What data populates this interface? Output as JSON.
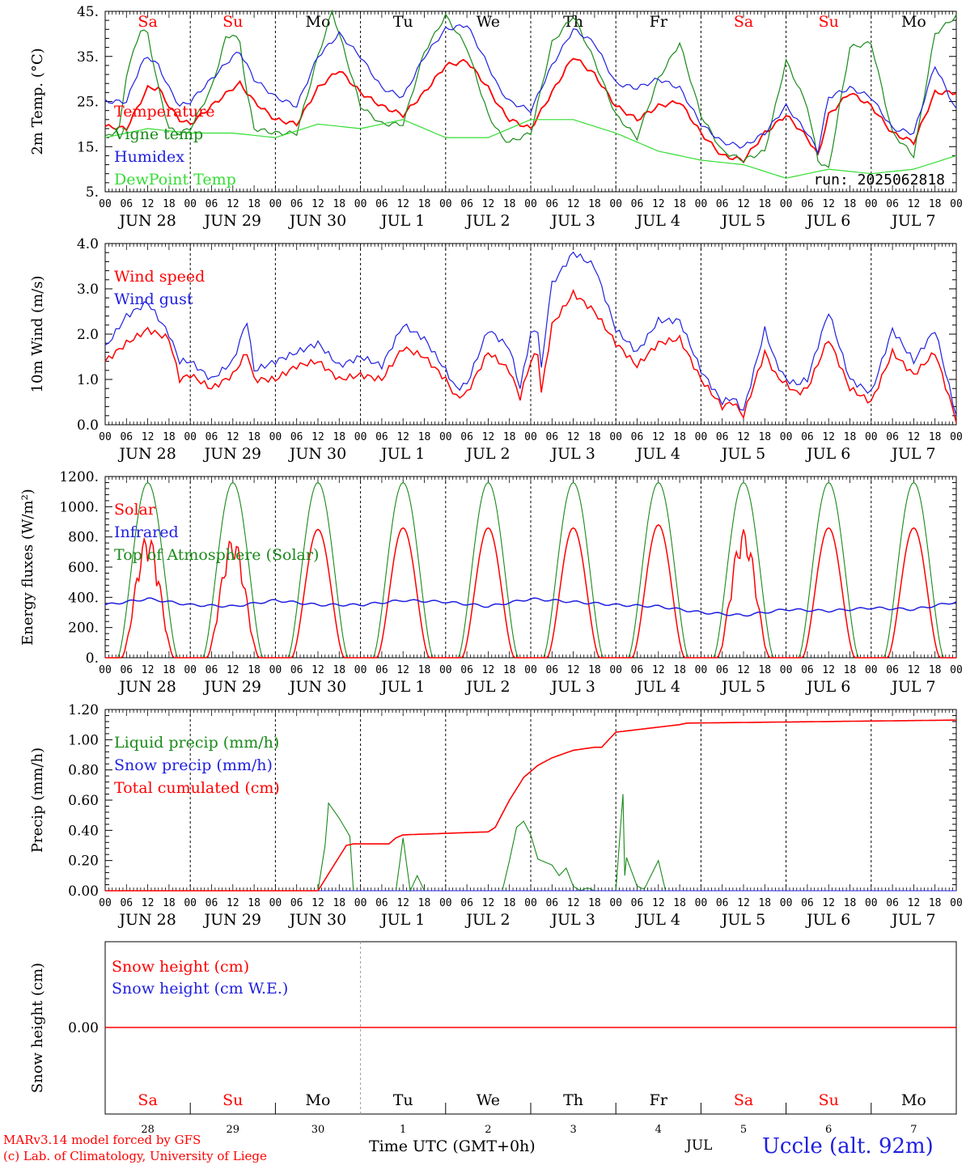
{
  "run_label": "run: 2025062818",
  "days": [
    "Sa",
    "Su",
    "Mo",
    "Tu",
    "We",
    "Th",
    "Fr",
    "Sa",
    "Su",
    "Mo"
  ],
  "day_colors": [
    "#ff0000",
    "#ff0000",
    "#000000",
    "#000000",
    "#000000",
    "#000000",
    "#000000",
    "#ff0000",
    "#ff0000",
    "#000000"
  ],
  "date_labels": [
    "JUN 28",
    "JUN 29",
    "JUN 30",
    "JUL  1",
    "JUL  2",
    "JUL  3",
    "JUL  4",
    "JUL  5",
    "JUL  6",
    "JUL  7"
  ],
  "hour_labels": [
    "00",
    "06",
    "12",
    "18"
  ],
  "bottom_day_numbers": [
    "28",
    "29",
    "30",
    "1",
    "2",
    "3",
    "4",
    "5",
    "6",
    "7"
  ],
  "footer": {
    "credit_line1": "MARv3.14 model forced by GFS",
    "credit_line2": "(c) Lab. of Climatology, University of Liege",
    "xaxis_label": "Time UTC (GMT+0h)",
    "month_label": "JUL",
    "station": "Uccle (alt. 92m)"
  },
  "chart_data": [
    {
      "type": "line",
      "ylabel": "2m Temp. (°C)",
      "ylim": [
        5,
        45
      ],
      "yticks": [
        5,
        15,
        25,
        35,
        45
      ],
      "ytick_labels": [
        "5.",
        "15.",
        "25.",
        "35.",
        "45."
      ],
      "x_unit": "hours since JUN 28 00 UTC",
      "series": [
        {
          "name": "Temperature",
          "color": "#ff0000",
          "x": [
            0,
            6,
            10,
            12,
            15,
            18,
            21,
            24,
            30,
            36,
            38,
            42,
            48,
            54,
            60,
            66,
            72,
            78,
            84,
            90,
            96,
            102,
            108,
            111,
            114,
            120,
            126,
            132,
            138,
            144,
            150,
            156,
            162,
            168,
            174,
            180,
            186,
            192,
            198,
            201,
            204,
            210,
            216,
            222,
            228,
            234,
            240
          ],
          "y": [
            19.5,
            19,
            25,
            28,
            28,
            24,
            21,
            20,
            24,
            28,
            29,
            25,
            21,
            20,
            28,
            32,
            27,
            24,
            22,
            27,
            33,
            34,
            28,
            24,
            21,
            19,
            27,
            35,
            31,
            24,
            21,
            24,
            25,
            18,
            13,
            12,
            18,
            22,
            17,
            13,
            22,
            27,
            24,
            18,
            16,
            27,
            27
          ]
        },
        {
          "name": "Vigne temp",
          "color": "#1a8a1a",
          "x": [
            0,
            4,
            6,
            10,
            12,
            15,
            18,
            21,
            24,
            30,
            34,
            36,
            38,
            40,
            42,
            48,
            54,
            60,
            64,
            66,
            72,
            78,
            84,
            90,
            96,
            102,
            108,
            112,
            114,
            120,
            126,
            132,
            138,
            144,
            150,
            156,
            162,
            168,
            174,
            180,
            186,
            192,
            198,
            201,
            204,
            210,
            216,
            222,
            228,
            234,
            240
          ],
          "y": [
            17,
            19,
            31,
            41,
            40,
            28,
            19,
            18,
            19,
            28,
            39,
            40,
            38,
            27,
            19,
            18,
            18,
            35,
            45,
            40,
            24,
            20,
            20,
            36,
            44,
            37,
            22,
            17,
            16,
            18,
            38,
            44,
            34,
            22,
            17,
            30,
            38,
            22,
            14,
            12,
            14,
            34,
            24,
            12,
            10,
            37,
            38,
            18,
            13,
            40,
            44
          ]
        },
        {
          "name": "Humidex",
          "color": "#2020e0",
          "x": [
            0,
            6,
            10,
            12,
            15,
            18,
            21,
            24,
            30,
            36,
            38,
            42,
            48,
            54,
            60,
            66,
            72,
            78,
            84,
            90,
            96,
            102,
            108,
            111,
            114,
            120,
            126,
            132,
            138,
            144,
            150,
            156,
            162,
            168,
            174,
            180,
            186,
            192,
            198,
            201,
            204,
            210,
            216,
            222,
            228,
            234,
            240
          ],
          "y": [
            25,
            25,
            33,
            35,
            33,
            28,
            24,
            25,
            30,
            35,
            36,
            30,
            26,
            24,
            35,
            40,
            35,
            28,
            26,
            35,
            41,
            42,
            33,
            28,
            25,
            23,
            33,
            41,
            38,
            29,
            28,
            30,
            28,
            20,
            16,
            15,
            18,
            24,
            18,
            14,
            26,
            28,
            26,
            19,
            18,
            33,
            23
          ]
        },
        {
          "name": "DewPoint Temp",
          "color": "#33dd33",
          "x": [
            0,
            12,
            24,
            36,
            48,
            60,
            72,
            84,
            96,
            108,
            120,
            132,
            144,
            156,
            168,
            180,
            192,
            204,
            216,
            228,
            240
          ],
          "y": [
            17,
            19,
            18,
            18,
            17,
            20,
            19,
            21,
            17,
            17,
            21,
            21,
            18,
            14,
            12,
            11,
            8,
            10,
            9,
            10,
            13
          ]
        }
      ]
    },
    {
      "type": "line",
      "ylabel": "10m Wind (m/s)",
      "ylim": [
        0,
        4
      ],
      "yticks": [
        0,
        1,
        2,
        3,
        4
      ],
      "ytick_labels": [
        "0.0",
        "1.0",
        "2.0",
        "3.0",
        "4.0"
      ],
      "series": [
        {
          "name": "Wind speed",
          "color": "#ff0000",
          "x": [
            0,
            6,
            12,
            18,
            21,
            24,
            30,
            36,
            40,
            42,
            48,
            54,
            60,
            66,
            72,
            78,
            84,
            90,
            96,
            99,
            102,
            108,
            114,
            117,
            120,
            122,
            123,
            125,
            126,
            132,
            138,
            144,
            150,
            156,
            162,
            168,
            174,
            177,
            180,
            186,
            189,
            192,
            195,
            198,
            204,
            210,
            216,
            222,
            228,
            234,
            240
          ],
          "y": [
            1.4,
            1.8,
            2.1,
            1.9,
            1.0,
            1.1,
            0.8,
            1.1,
            1.6,
            1.0,
            1.0,
            1.3,
            1.4,
            1.0,
            1.1,
            1.0,
            1.7,
            1.5,
            1.0,
            0.6,
            0.7,
            1.6,
            1.2,
            0.6,
            1.4,
            1.6,
            0.7,
            1.7,
            2.2,
            2.9,
            2.5,
            1.8,
            1.3,
            1.8,
            1.9,
            1.0,
            0.4,
            0.5,
            0.2,
            1.6,
            1.1,
            0.9,
            0.7,
            0.8,
            1.9,
            0.8,
            0.5,
            1.6,
            1.1,
            1.6,
            0.1
          ]
        },
        {
          "name": "Wind gust",
          "color": "#2020e0",
          "x": [
            0,
            6,
            12,
            18,
            21,
            24,
            30,
            36,
            40,
            42,
            48,
            54,
            60,
            66,
            72,
            78,
            84,
            90,
            96,
            99,
            102,
            108,
            114,
            117,
            120,
            122,
            123,
            125,
            126,
            132,
            138,
            144,
            150,
            156,
            162,
            168,
            174,
            177,
            180,
            186,
            189,
            192,
            195,
            198,
            204,
            210,
            216,
            222,
            228,
            234,
            240
          ],
          "y": [
            1.7,
            2.4,
            2.7,
            2.0,
            1.4,
            1.4,
            1.0,
            1.4,
            2.3,
            1.2,
            1.4,
            1.6,
            1.8,
            1.3,
            1.5,
            1.3,
            2.2,
            1.9,
            1.2,
            0.8,
            0.9,
            2.1,
            1.7,
            0.8,
            2.0,
            2.1,
            1.2,
            2.6,
            3.1,
            3.8,
            3.5,
            2.1,
            1.6,
            2.3,
            2.3,
            1.2,
            0.5,
            0.6,
            0.3,
            2.1,
            1.4,
            1.0,
            0.9,
            1.0,
            2.5,
            1.0,
            0.7,
            2.1,
            1.4,
            2.1,
            0.2
          ]
        }
      ]
    },
    {
      "type": "line",
      "ylabel": "Energy fluxes (W/m²)",
      "ylim": [
        0,
        1200
      ],
      "yticks": [
        0,
        200,
        400,
        600,
        800,
        1000,
        1200
      ],
      "ytick_labels": [
        "0.",
        "200.",
        "400.",
        "600.",
        "800.",
        "1000.",
        "1200."
      ],
      "series": [
        {
          "name": "Solar",
          "color": "#ff0000",
          "peaks": [
            820,
            800,
            850,
            860,
            860,
            860,
            880,
            850,
            860,
            860
          ],
          "note": "daily diurnal cycle, daylight ~04-20 UTC"
        },
        {
          "name": "Infrared",
          "color": "#2020e0",
          "x": [
            0,
            12,
            24,
            36,
            48,
            60,
            72,
            84,
            96,
            108,
            120,
            132,
            144,
            156,
            168,
            180,
            192,
            204,
            216,
            228,
            240
          ],
          "y": [
            350,
            390,
            350,
            340,
            380,
            350,
            350,
            380,
            370,
            340,
            390,
            370,
            350,
            340,
            300,
            280,
            320,
            310,
            330,
            320,
            370
          ]
        },
        {
          "name": "Top of Atmosphere (Solar)",
          "color": "#1a8a1a",
          "peaks": [
            1160,
            1160,
            1160,
            1160,
            1160,
            1160,
            1160,
            1160,
            1160,
            1160
          ]
        }
      ]
    },
    {
      "type": "line",
      "ylabel": "Precip (mm/h)",
      "ylim": [
        0,
        1.2
      ],
      "yticks": [
        0,
        0.2,
        0.4,
        0.6,
        0.8,
        1.0,
        1.2
      ],
      "ytick_labels": [
        "0.00",
        "0.20",
        "0.40",
        "0.60",
        "0.80",
        "1.00",
        "1.20"
      ],
      "series": [
        {
          "name": "Liquid precip (mm/h)",
          "color": "#1a8a1a",
          "x": [
            0,
            60,
            62,
            63,
            66,
            69,
            70,
            72,
            82,
            84,
            86,
            88,
            90,
            112,
            114,
            116,
            118,
            120,
            122,
            126,
            128,
            130,
            132,
            134,
            136,
            138,
            140,
            144,
            146,
            146.5,
            147,
            150,
            152,
            156,
            158,
            160,
            162,
            240
          ],
          "y": [
            0,
            0,
            0.3,
            0.58,
            0.48,
            0.36,
            0.0,
            0,
            0,
            0.35,
            0.0,
            0.1,
            0,
            0,
            0.2,
            0.42,
            0.46,
            0.37,
            0.21,
            0.17,
            0.1,
            0.15,
            0.03,
            0.0,
            0.02,
            0.0,
            0.0,
            0,
            0.64,
            0.1,
            0.22,
            0.03,
            0.01,
            0.2,
            0.0,
            0,
            0,
            0
          ]
        },
        {
          "name": "Snow precip (mm/h)",
          "color": "#2020e0",
          "x": [
            0,
            240
          ],
          "y": [
            0,
            0
          ]
        },
        {
          "name": "Total cumulated (cm)",
          "color": "#ff0000",
          "x": [
            0,
            60,
            64,
            68,
            70,
            80,
            82,
            84,
            108,
            110,
            114,
            118,
            122,
            126,
            132,
            138,
            140,
            144,
            162,
            164,
            240
          ],
          "y": [
            0,
            0,
            0.15,
            0.3,
            0.31,
            0.31,
            0.35,
            0.37,
            0.39,
            0.42,
            0.6,
            0.75,
            0.83,
            0.88,
            0.93,
            0.95,
            0.95,
            1.05,
            1.1,
            1.11,
            1.13
          ]
        }
      ]
    },
    {
      "type": "line",
      "ylabel": "Snow height (cm)",
      "ytick_labels": [
        "0.00"
      ],
      "series": [
        {
          "name": "Snow height (cm)",
          "color": "#ff0000",
          "x": [
            0,
            240
          ],
          "y": [
            0,
            0
          ]
        },
        {
          "name": "Snow height (cm W.E.)",
          "color": "#2020e0",
          "x": [
            0,
            240
          ],
          "y": [
            0,
            0
          ]
        }
      ]
    }
  ]
}
